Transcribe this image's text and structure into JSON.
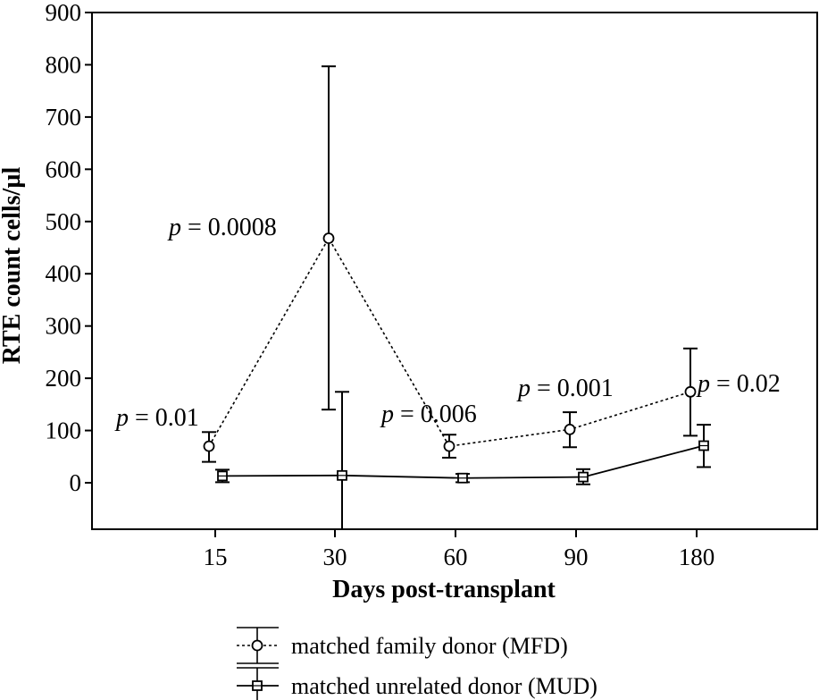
{
  "chart_data": {
    "type": "line",
    "title": "",
    "xlabel": "Days post-transplant",
    "ylabel": "RTE count cells/µl",
    "categories": [
      "15",
      "30",
      "60",
      "90",
      "180"
    ],
    "yticks": [
      0,
      100,
      200,
      300,
      400,
      500,
      600,
      700,
      800,
      900
    ],
    "ylim": [
      -90,
      900
    ],
    "grid": false,
    "legend_position": "bottom",
    "series": [
      {
        "name": "matched family donor (MFD)",
        "marker": "circle",
        "line_style": "dotted",
        "values": [
          70,
          468,
          70,
          102,
          174
        ],
        "err_low": [
          40,
          140,
          48,
          68,
          90
        ],
        "err_high": [
          97,
          797,
          92,
          135,
          257
        ]
      },
      {
        "name": "matched unrelated donor (MUD)",
        "marker": "square",
        "line_style": "solid",
        "values": [
          13,
          14,
          9,
          11,
          71
        ],
        "err_low": [
          1,
          -90,
          1,
          -3,
          30
        ],
        "err_high": [
          25,
          174,
          17,
          26,
          111
        ]
      }
    ],
    "annotations": [
      {
        "prefix": "p",
        "text": " = 0.01"
      },
      {
        "prefix": "p",
        "text": " = 0.0008"
      },
      {
        "prefix": "p",
        "text": " = 0.006"
      },
      {
        "prefix": "p",
        "text": " = 0.001"
      },
      {
        "prefix": "p",
        "text": " = 0.02"
      }
    ]
  }
}
